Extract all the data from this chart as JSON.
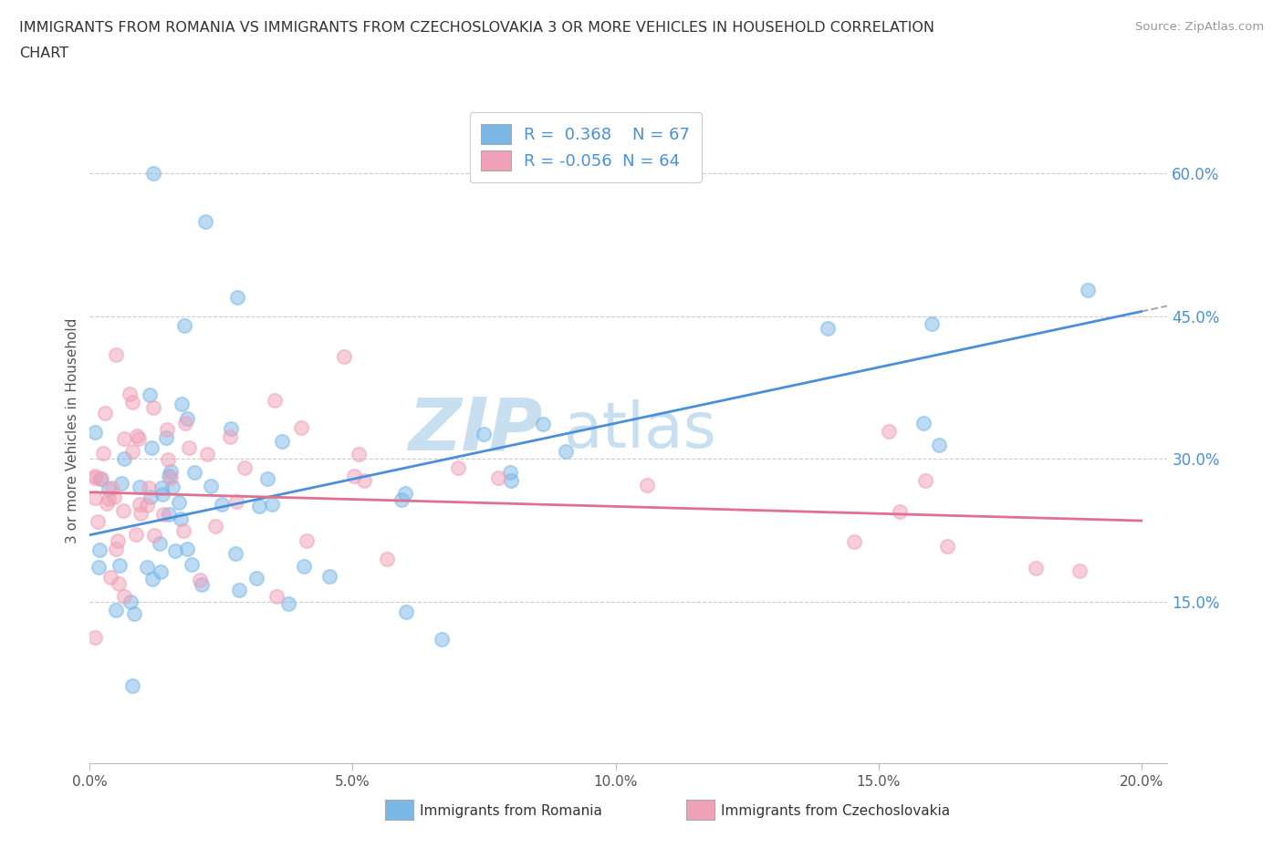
{
  "title_line1": "IMMIGRANTS FROM ROMANIA VS IMMIGRANTS FROM CZECHOSLOVAKIA 3 OR MORE VEHICLES IN HOUSEHOLD CORRELATION",
  "title_line2": "CHART",
  "source": "Source: ZipAtlas.com",
  "romania_R": 0.368,
  "romania_N": 67,
  "czech_R": -0.056,
  "czech_N": 64,
  "romania_color": "#7ab8e8",
  "czech_color": "#f0a0b8",
  "romania_line_color": "#4a90d9",
  "czech_line_color": "#e07090",
  "trend_line_color": "#aaaaaa",
  "xlim": [
    0.0,
    0.205
  ],
  "ylim": [
    -0.02,
    0.68
  ],
  "xlabel_ticks": [
    0.0,
    0.05,
    0.1,
    0.15,
    0.2
  ],
  "ylabel_ticks": [
    0.15,
    0.3,
    0.45,
    0.6
  ],
  "grid_ticks": [
    0.15,
    0.3,
    0.45,
    0.6
  ],
  "background_color": "#ffffff",
  "watermark_text_1": "ZIP",
  "watermark_text_2": "atlas",
  "watermark_color_1": "#c8dff0",
  "watermark_color_2": "#c8dff0",
  "romania_trend_x0": 0.0,
  "romania_trend_y0": 0.22,
  "romania_trend_x1": 0.2,
  "romania_trend_y1": 0.455,
  "czech_trend_x0": 0.0,
  "czech_trend_y0": 0.265,
  "czech_trend_x1": 0.2,
  "czech_trend_y1": 0.235
}
